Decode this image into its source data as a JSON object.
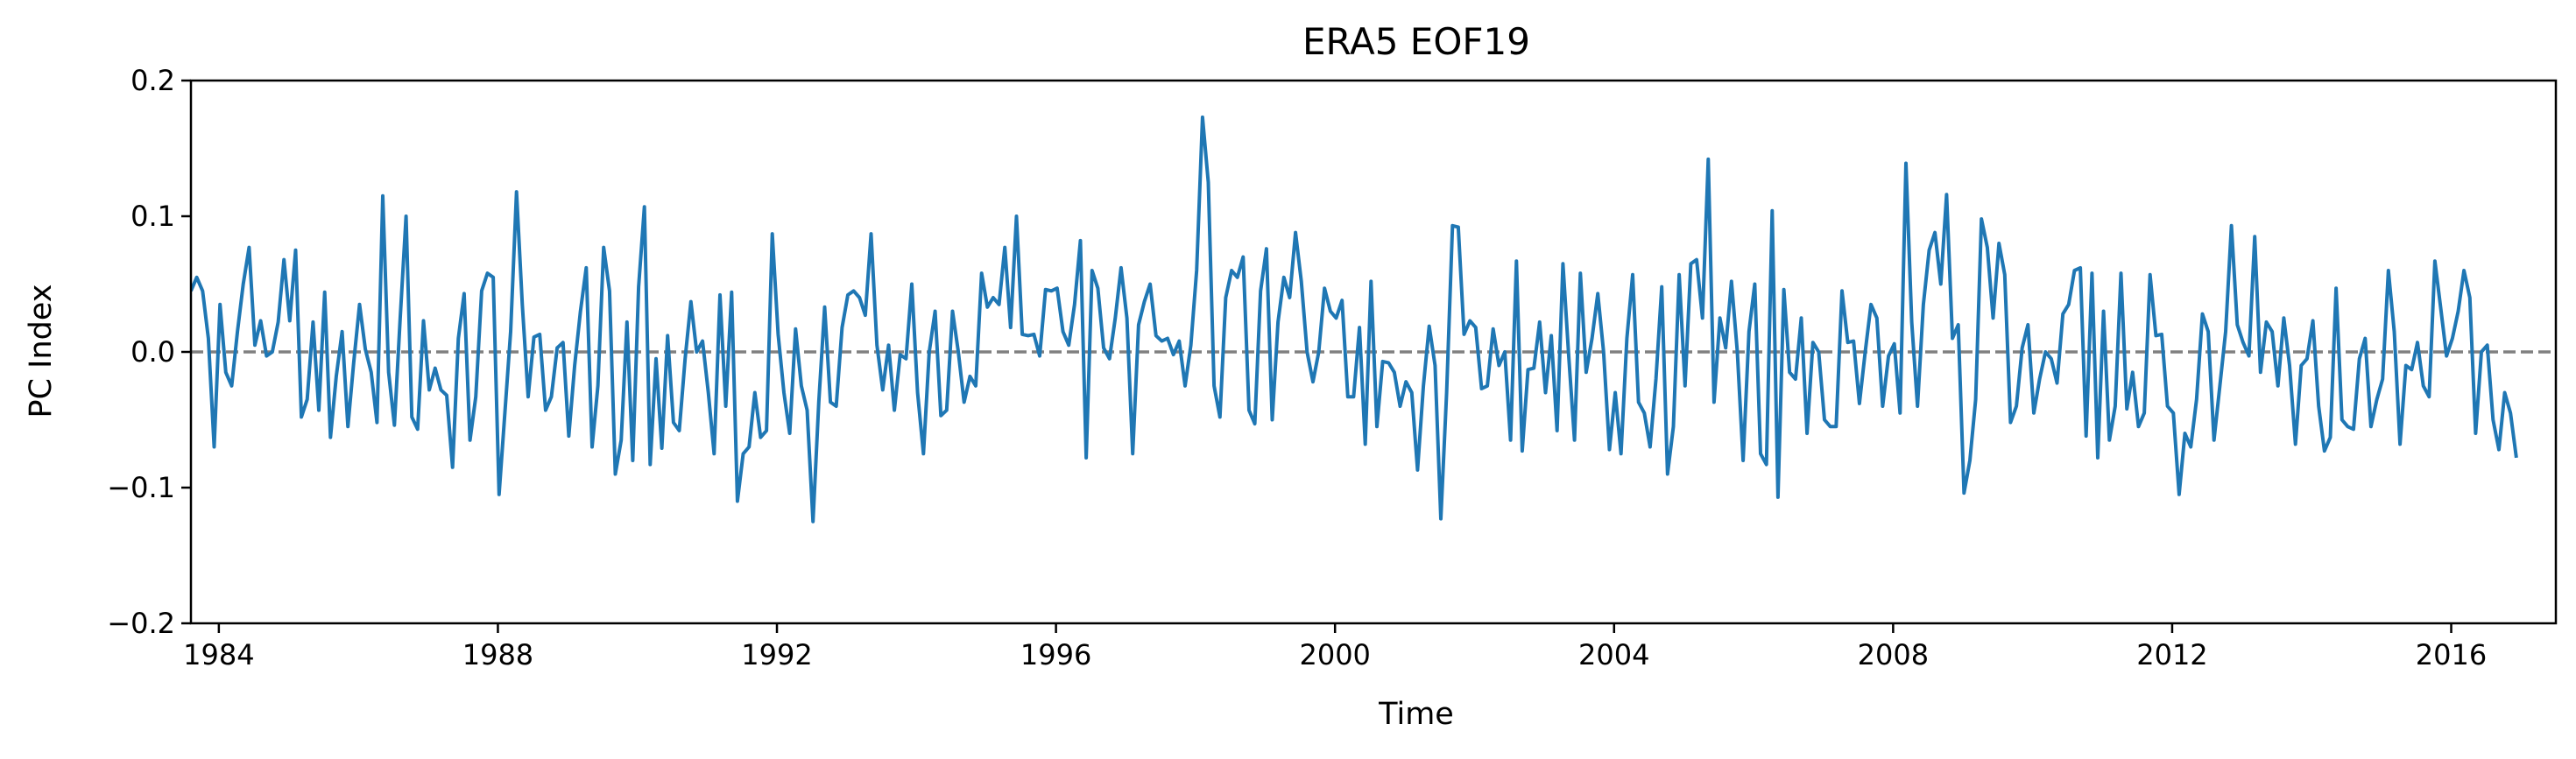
{
  "chart_data": {
    "type": "line",
    "title": "ERA5  EOF19",
    "xlabel": "Time",
    "ylabel": "PC Index",
    "xlim": [
      1983.6,
      2017.5
    ],
    "ylim": [
      -0.2,
      0.2
    ],
    "xticks": [
      1984,
      1988,
      1992,
      1996,
      2000,
      2004,
      2008,
      2012,
      2016
    ],
    "xtick_labels": [
      "1984",
      "1988",
      "1992",
      "1996",
      "2000",
      "2004",
      "2008",
      "2012",
      "2016"
    ],
    "yticks": [
      -0.2,
      -0.1,
      0.0,
      0.1,
      0.2
    ],
    "ytick_labels": [
      "−0.2",
      "−0.1",
      "0.0",
      "0.1",
      "0.2"
    ],
    "zero_line": {
      "y": 0.0,
      "style": "dashed",
      "color": "#808080"
    },
    "grid": false,
    "colors": {
      "series": "#1f77b4",
      "zero_line": "#808080",
      "axes": "#000000"
    },
    "series": [
      {
        "x_start": 1983.6,
        "x_step": 0.0833333,
        "values": [
          0.045,
          0.055,
          0.045,
          0.01,
          -0.07,
          0.035,
          -0.015,
          -0.025,
          0.015,
          0.05,
          0.077,
          0.005,
          0.023,
          -0.003,
          0.0,
          0.022,
          0.068,
          0.023,
          0.075,
          -0.048,
          -0.035,
          0.022,
          -0.043,
          0.044,
          -0.063,
          -0.018,
          0.015,
          -0.055,
          -0.008,
          0.035,
          0.002,
          -0.015,
          -0.052,
          0.115,
          -0.015,
          -0.054,
          0.025,
          0.1,
          -0.048,
          -0.057,
          0.023,
          -0.028,
          -0.012,
          -0.028,
          -0.032,
          -0.085,
          0.01,
          0.043,
          -0.065,
          -0.033,
          0.045,
          0.058,
          0.055,
          -0.105,
          -0.045,
          0.015,
          0.118,
          0.035,
          -0.033,
          0.011,
          0.013,
          -0.043,
          -0.033,
          0.003,
          0.007,
          -0.062,
          -0.01,
          0.03,
          0.062,
          -0.07,
          -0.025,
          0.077,
          0.045,
          -0.09,
          -0.065,
          0.022,
          -0.08,
          0.048,
          0.107,
          -0.083,
          -0.005,
          -0.071,
          0.012,
          -0.052,
          -0.058,
          -0.005,
          0.037,
          0.0,
          0.008,
          -0.03,
          -0.075,
          0.042,
          -0.04,
          0.044,
          -0.11,
          -0.075,
          -0.07,
          -0.03,
          -0.063,
          -0.058,
          0.087,
          0.013,
          -0.03,
          -0.06,
          0.017,
          -0.025,
          -0.043,
          -0.125,
          -0.037,
          0.033,
          -0.037,
          -0.04,
          0.018,
          0.042,
          0.045,
          0.04,
          0.027,
          0.087,
          0.005,
          -0.028,
          0.005,
          -0.043,
          -0.002,
          -0.005,
          0.05,
          -0.03,
          -0.075,
          0.0,
          0.03,
          -0.047,
          -0.043,
          0.03,
          0.0,
          -0.037,
          -0.018,
          -0.025,
          0.058,
          0.033,
          0.04,
          0.035,
          0.077,
          0.018,
          0.1,
          0.013,
          0.012,
          0.013,
          -0.003,
          0.046,
          0.045,
          0.047,
          0.015,
          0.005,
          0.035,
          0.082,
          -0.078,
          0.06,
          0.047,
          0.003,
          -0.005,
          0.025,
          0.062,
          0.025,
          -0.075,
          0.02,
          0.037,
          0.05,
          0.012,
          0.008,
          0.01,
          -0.002,
          0.008,
          -0.025,
          0.005,
          0.06,
          0.173,
          0.125,
          -0.025,
          -0.048,
          0.04,
          0.06,
          0.055,
          0.07,
          -0.043,
          -0.053,
          0.045,
          0.076,
          -0.05,
          0.022,
          0.055,
          0.04,
          0.088,
          0.052,
          0.0,
          -0.022,
          0.0,
          0.047,
          0.03,
          0.025,
          0.038,
          -0.033,
          -0.033,
          0.018,
          -0.068,
          0.052,
          -0.055,
          -0.007,
          -0.008,
          -0.015,
          -0.04,
          -0.022,
          -0.03,
          -0.087,
          -0.025,
          0.019,
          -0.01,
          -0.123,
          -0.03,
          0.093,
          0.092,
          0.013,
          0.023,
          0.018,
          -0.027,
          -0.025,
          0.017,
          -0.01,
          0.0,
          -0.065,
          0.067,
          -0.073,
          -0.013,
          -0.012,
          0.022,
          -0.03,
          0.012,
          -0.058,
          0.065,
          -0.003,
          -0.065,
          0.058,
          -0.015,
          0.01,
          0.043,
          0.0,
          -0.072,
          -0.03,
          -0.075,
          0.01,
          0.057,
          -0.037,
          -0.045,
          -0.07,
          -0.02,
          0.048,
          -0.09,
          -0.055,
          0.057,
          -0.025,
          0.065,
          0.068,
          0.025,
          0.142,
          -0.037,
          0.025,
          0.003,
          0.052,
          0.0,
          -0.08,
          0.015,
          0.05,
          -0.075,
          -0.083,
          0.104,
          -0.107,
          0.046,
          -0.015,
          -0.02,
          0.025,
          -0.06,
          0.007,
          0.0,
          -0.05,
          -0.055,
          -0.055,
          0.045,
          0.007,
          0.008,
          -0.038,
          0.0,
          0.035,
          0.025,
          -0.04,
          -0.003,
          0.006,
          -0.045,
          0.139,
          0.022,
          -0.04,
          0.035,
          0.075,
          0.088,
          0.05,
          0.116,
          0.01,
          0.02,
          -0.104,
          -0.08,
          -0.035,
          0.098,
          0.077,
          0.025,
          0.08,
          0.057,
          -0.052,
          -0.04,
          0.003,
          0.02,
          -0.045,
          -0.02,
          0.0,
          -0.005,
          -0.023,
          0.028,
          0.035,
          0.06,
          0.062,
          -0.062,
          0.058,
          -0.078,
          0.03,
          -0.065,
          -0.04,
          0.058,
          -0.042,
          -0.015,
          -0.055,
          -0.045,
          0.057,
          0.012,
          0.013,
          -0.04,
          -0.045,
          -0.105,
          -0.06,
          -0.07,
          -0.035,
          0.028,
          0.015,
          -0.065,
          -0.025,
          0.015,
          0.093,
          0.02,
          0.007,
          -0.003,
          0.085,
          -0.015,
          0.022,
          0.015,
          -0.025,
          0.025,
          -0.01,
          -0.068,
          -0.01,
          -0.005,
          0.023,
          -0.04,
          -0.073,
          -0.063,
          0.047,
          -0.05,
          -0.055,
          -0.057,
          -0.005,
          0.01,
          -0.055,
          -0.035,
          -0.02,
          0.06,
          0.015,
          -0.068,
          -0.01,
          -0.013,
          0.007,
          -0.025,
          -0.033,
          0.067,
          0.032,
          -0.003,
          0.01,
          0.03,
          0.06,
          0.04,
          -0.06,
          0.0,
          0.005,
          -0.05,
          -0.072,
          -0.03,
          -0.045,
          -0.078
        ]
      }
    ]
  }
}
